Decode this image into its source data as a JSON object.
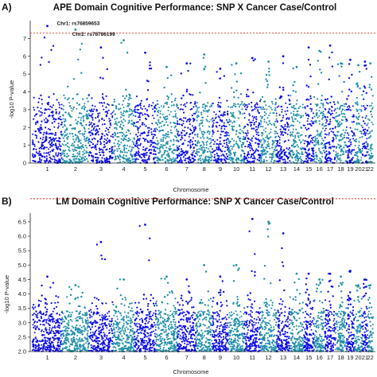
{
  "colors": {
    "dark": "#0e0ee8",
    "light": "#1f8fa8",
    "threshold": "#e0312b",
    "axis": "#222222"
  },
  "chart_data": [
    {
      "type": "scatter",
      "panel_label": "A)",
      "title": "APE Domain Cognitive Performance: SNP X Cancer Case/Control",
      "xlabel": "Chromosome",
      "ylabel": "-log10 P-value",
      "ylim": [
        0,
        8
      ],
      "yticks": [
        "0",
        "1",
        "2",
        "3",
        "4",
        "5",
        "6",
        "7"
      ],
      "threshold": 7.3,
      "grid": false,
      "chromosomes": [
        "1",
        "2",
        "3",
        "4",
        "5",
        "6",
        "7",
        "8",
        "9",
        "10",
        "11",
        "12",
        "13",
        "14",
        "15",
        "16",
        "17",
        "18",
        "19",
        "20",
        "21",
        "22"
      ],
      "peak_maxima": [
        7.7,
        7.5,
        6.5,
        6.9,
        6.2,
        5.4,
        5.6,
        6.1,
        5.3,
        5.6,
        5.9,
        5.7,
        6.0,
        5.4,
        6.5,
        6.3,
        6.6,
        5.6,
        5.8,
        5.5,
        5.7,
        5.6
      ],
      "annotations": [
        {
          "text": "Chr1: rs76859653",
          "chromosome": "1",
          "value": 7.7
        },
        {
          "text": "Chr2: rs78786199",
          "chromosome": "2",
          "value": 7.5
        }
      ]
    },
    {
      "type": "scatter",
      "panel_label": "B)",
      "title": "LM Domain Cognitive Performance: SNP X Cancer Case/Control",
      "xlabel": "Chromosome",
      "ylabel": "-log10 P-value",
      "ylim": [
        2.0,
        6.8
      ],
      "yticks": [
        "2.0",
        "2.5",
        "3.0",
        "3.5",
        "4.0",
        "4.5",
        "5.0",
        "5.5",
        "6.0",
        "6.5"
      ],
      "threshold": 7.3,
      "grid": false,
      "chromosomes": [
        "1",
        "2",
        "3",
        "4",
        "5",
        "6",
        "7",
        "8",
        "9",
        "10",
        "11",
        "12",
        "13",
        "14",
        "15",
        "16",
        "17",
        "18",
        "19",
        "20",
        "21",
        "22"
      ],
      "peak_maxima": [
        4.6,
        4.3,
        5.8,
        4.5,
        6.4,
        4.6,
        4.5,
        5.0,
        4.6,
        5.0,
        6.6,
        6.5,
        6.1,
        4.7,
        4.7,
        4.5,
        4.7,
        4.6,
        4.8,
        4.3,
        4.5,
        4.3
      ],
      "annotations": []
    }
  ]
}
